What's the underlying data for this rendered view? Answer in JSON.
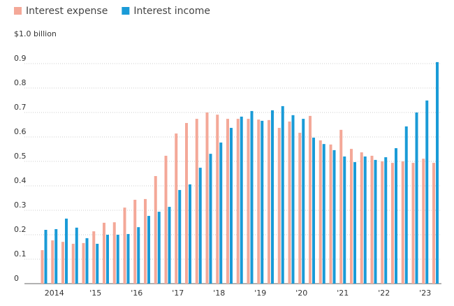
{
  "chart_data": {
    "type": "bar",
    "categories": [
      null,
      "2014",
      null,
      null,
      null,
      "'15",
      null,
      null,
      null,
      "'16",
      null,
      null,
      null,
      "'17",
      null,
      null,
      null,
      "'18",
      null,
      null,
      null,
      "'19",
      null,
      null,
      null,
      "'20",
      null,
      null,
      null,
      "'21",
      null,
      null,
      null,
      "'22",
      null,
      null,
      null,
      "'23",
      null
    ],
    "series": [
      {
        "name": "Interest expense",
        "color": "#f4a898",
        "values": [
          0.137,
          0.177,
          0.171,
          0.163,
          0.166,
          0.214,
          0.249,
          0.251,
          0.311,
          0.343,
          0.346,
          0.44,
          0.523,
          0.614,
          0.657,
          0.674,
          0.7,
          0.691,
          0.674,
          0.674,
          0.674,
          0.671,
          0.669,
          0.637,
          0.663,
          0.617,
          0.686,
          0.586,
          0.569,
          0.629,
          0.551,
          0.537,
          0.523,
          0.5,
          0.494,
          0.5,
          0.494,
          0.511,
          0.494
        ]
      },
      {
        "name": "Interest income",
        "color": "#1a9bd7",
        "values": [
          0.22,
          0.223,
          0.266,
          0.229,
          0.186,
          0.163,
          0.2,
          0.2,
          0.203,
          0.231,
          0.277,
          0.294,
          0.314,
          0.383,
          0.406,
          0.474,
          0.531,
          0.577,
          0.637,
          0.683,
          0.706,
          0.666,
          0.709,
          0.726,
          0.689,
          0.674,
          0.597,
          0.571,
          0.546,
          0.52,
          0.497,
          0.52,
          0.506,
          0.517,
          0.554,
          0.643,
          0.7,
          0.749,
          0.906
        ]
      }
    ],
    "ylim": [
      0,
      1
    ],
    "yticks": [
      0,
      0.1,
      0.2,
      0.3,
      0.4,
      0.5,
      0.6,
      0.7,
      0.8,
      0.9,
      {
        "value": 1,
        "label": "$1.0 billion"
      }
    ],
    "grid": true,
    "legend": "top-left"
  }
}
